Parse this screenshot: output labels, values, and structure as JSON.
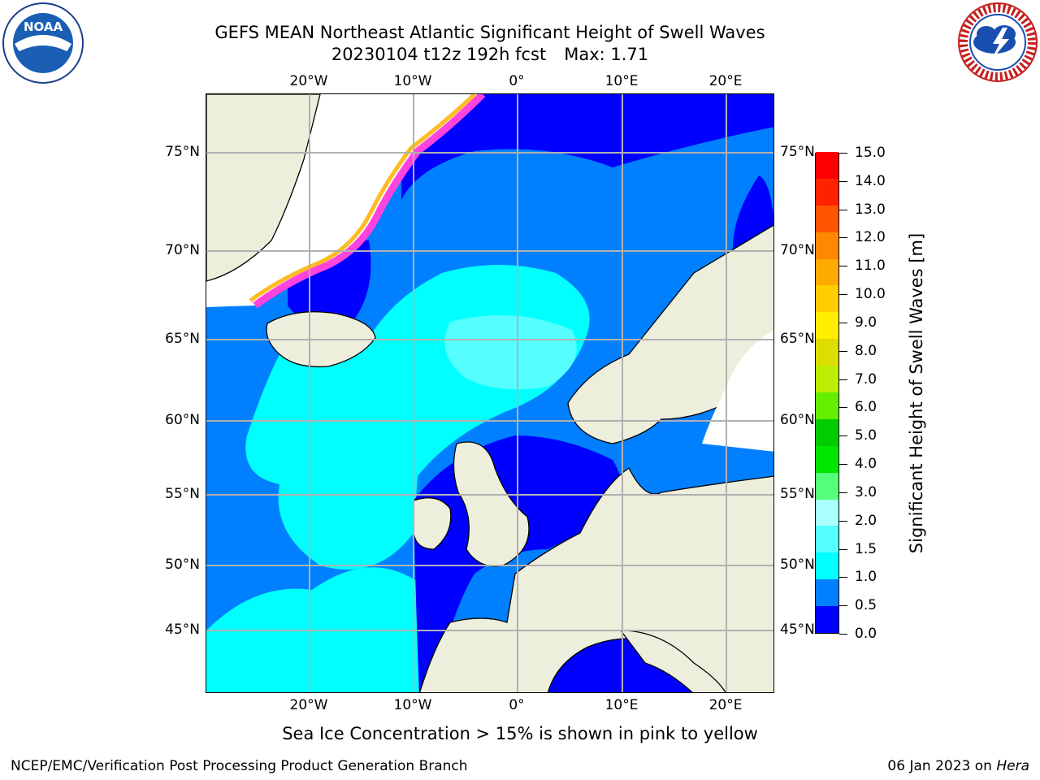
{
  "header": {
    "title_line1": "GEFS MEAN Northeast Atlantic Significant Height of Swell Waves",
    "title_run": "20230104 t12z 192h fcst",
    "title_max": "Max: 1.71"
  },
  "logos": {
    "left": {
      "icon": "noaa-logo",
      "text": "NOAA"
    },
    "right": {
      "icon": "nws-logo",
      "text": "NATIONAL WEATHER SERVICE"
    }
  },
  "map": {
    "lon_labels": [
      "20°W",
      "10°W",
      "0°",
      "10°E",
      "20°E"
    ],
    "lat_labels": [
      "75°N",
      "70°N",
      "65°N",
      "60°N",
      "55°N",
      "50°N",
      "45°N"
    ],
    "colors": {
      "land": "#eeeedd",
      "ice": "#ffffff",
      "coast": "#000000",
      "grid": "#b0b0b0"
    }
  },
  "colorbar": {
    "title": "Significant Height of Swell Waves [m]",
    "ticks": [
      "15.0",
      "14.0",
      "13.0",
      "12.0",
      "11.0",
      "10.0",
      "9.0",
      "8.0",
      "7.0",
      "6.0",
      "5.0",
      "4.0",
      "3.0",
      "2.0",
      "1.5",
      "1.0",
      "0.5",
      "0.0"
    ],
    "colors_bottom_to_top": [
      "#0000ff",
      "#0080ff",
      "#00ffff",
      "#55ffff",
      "#aaffff",
      "#55ff77",
      "#00e600",
      "#00cc00",
      "#66ee00",
      "#bbee00",
      "#dddd00",
      "#ffee00",
      "#ffcc00",
      "#ffaa00",
      "#ff8800",
      "#ff5500",
      "#ff2200",
      "#ff0000"
    ]
  },
  "caption": "Sea Ice Concentration > 15% is shown in pink to yellow",
  "footer": {
    "left": "NCEP/EMC/Verification Post Processing Product Generation Branch",
    "date": "06 Jan 2023",
    "on": "on",
    "machine": "Hera"
  }
}
